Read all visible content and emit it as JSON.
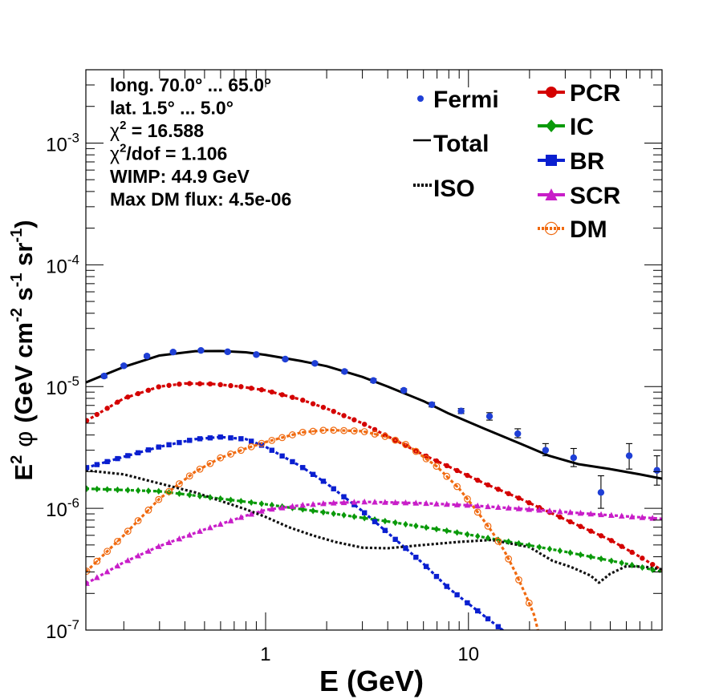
{
  "chart_data": {
    "type": "scatter",
    "title": "",
    "xlabel": "E (GeV)",
    "ylabel": {
      "base": "E",
      "sup1": "2",
      "sym": "φ",
      "unit_open": "(GeV cm",
      "sup2": "-2",
      "mid1": " s",
      "sup3": "-1",
      "mid2": " sr",
      "sup4": "-1",
      "close": ")"
    },
    "xscale": "log",
    "yscale": "log",
    "xlim": [
      0.13,
      90
    ],
    "ylim": [
      1e-07,
      0.004
    ],
    "x_tick_labels": [
      {
        "v": 1,
        "t": "1"
      },
      {
        "v": 10,
        "t": "10"
      }
    ],
    "y_tick_labels": [
      {
        "v": 1e-07,
        "b": "10",
        "e": "-7"
      },
      {
        "v": 1e-06,
        "b": "10",
        "e": "-6"
      },
      {
        "v": 1e-05,
        "b": "10",
        "e": "-5"
      },
      {
        "v": 0.0001,
        "b": "10",
        "e": "-4"
      },
      {
        "v": 0.001,
        "b": "10",
        "e": "-3"
      }
    ],
    "info": [
      {
        "text": "long. 70.0° ... 65.0°"
      },
      {
        "text": "lat. 1.5° ... 5.0°"
      },
      {
        "pre": "χ",
        "sup": "2",
        "post": " = 16.588"
      },
      {
        "pre": "χ",
        "sup": "2",
        "post": "/dof = 1.106"
      },
      {
        "text": "WIMP: 44.9 GeV"
      },
      {
        "text": "Max DM flux: 4.5e-06"
      }
    ],
    "legend_left": [
      {
        "label": "Fermi",
        "key": "fermi"
      },
      {
        "label": "Total",
        "key": "total"
      },
      {
        "label": "ISO",
        "key": "iso"
      }
    ],
    "legend_right": [
      {
        "label": "PCR",
        "key": "pcr"
      },
      {
        "label": "IC",
        "key": "ic"
      },
      {
        "label": "BR",
        "key": "br"
      },
      {
        "label": "SCR",
        "key": "scr"
      },
      {
        "label": "DM",
        "key": "dm"
      }
    ],
    "fermi": {
      "color": "#1f3fd6",
      "points": [
        {
          "x": 0.16,
          "y": 1.22e-05,
          "err": [
            1.18e-05,
            1.26e-05
          ]
        },
        {
          "x": 0.2,
          "y": 1.48e-05,
          "err": [
            1.44e-05,
            1.52e-05
          ]
        },
        {
          "x": 0.26,
          "y": 1.78e-05,
          "err": [
            1.74e-05,
            1.82e-05
          ]
        },
        {
          "x": 0.35,
          "y": 1.92e-05,
          "err": [
            1.88e-05,
            1.96e-05
          ]
        },
        {
          "x": 0.48,
          "y": 1.98e-05,
          "err": [
            1.94e-05,
            2.02e-05
          ]
        },
        {
          "x": 0.65,
          "y": 1.93e-05,
          "err": [
            1.89e-05,
            1.97e-05
          ]
        },
        {
          "x": 0.9,
          "y": 1.83e-05,
          "err": [
            1.79e-05,
            1.87e-05
          ]
        },
        {
          "x": 1.25,
          "y": 1.68e-05,
          "err": [
            1.64e-05,
            1.72e-05
          ]
        },
        {
          "x": 1.75,
          "y": 1.55e-05,
          "err": [
            1.51e-05,
            1.59e-05
          ]
        },
        {
          "x": 2.45,
          "y": 1.33e-05,
          "err": [
            1.29e-05,
            1.37e-05
          ]
        },
        {
          "x": 3.4,
          "y": 1.12e-05,
          "err": [
            1.08e-05,
            1.16e-05
          ]
        },
        {
          "x": 4.8,
          "y": 9.3e-06,
          "err": [
            9e-06,
            9.6e-06
          ]
        },
        {
          "x": 6.6,
          "y": 7.1e-06,
          "err": [
            6.8e-06,
            7.4e-06
          ]
        },
        {
          "x": 9.2,
          "y": 6.3e-06,
          "err": [
            6e-06,
            6.6e-06
          ]
        },
        {
          "x": 12.7,
          "y": 5.7e-06,
          "err": [
            5.3e-06,
            6.1e-06
          ]
        },
        {
          "x": 17.5,
          "y": 4.1e-06,
          "err": [
            3.8e-06,
            4.5e-06
          ]
        },
        {
          "x": 24,
          "y": 3e-06,
          "err": [
            2.7e-06,
            3.4e-06
          ]
        },
        {
          "x": 33,
          "y": 2.6e-06,
          "err": [
            2.2e-06,
            3.1e-06
          ]
        },
        {
          "x": 45,
          "y": 1.35e-06,
          "err": [
            1e-06,
            1.85e-06
          ]
        },
        {
          "x": 62,
          "y": 2.7e-06,
          "err": [
            2.1e-06,
            3.4e-06
          ]
        },
        {
          "x": 85,
          "y": 2.05e-06,
          "err": [
            1.55e-06,
            2.7e-06
          ]
        }
      ]
    },
    "series": [
      {
        "key": "total",
        "name": "Total",
        "color": "#000000",
        "style": "solid",
        "marker": "none",
        "x": [
          0.13,
          0.2,
          0.3,
          0.45,
          0.6,
          0.8,
          1.0,
          1.5,
          2.0,
          3.0,
          4.0,
          6.0,
          8.0,
          12.0,
          18.0,
          25.0,
          35.0,
          50.0,
          70.0,
          90.0
        ],
        "y": [
          1.08e-05,
          1.45e-05,
          1.8e-05,
          1.95e-05,
          1.96e-05,
          1.91e-05,
          1.82e-05,
          1.62e-05,
          1.47e-05,
          1.2e-05,
          1e-05,
          7.6e-06,
          6e-06,
          4.5e-06,
          3.4e-06,
          2.7e-06,
          2.3e-06,
          2.1e-06,
          1.9e-06,
          1.75e-06
        ]
      },
      {
        "key": "pcr",
        "name": "PCR",
        "color": "#d40000",
        "style": "dashed",
        "marker": "circle",
        "x": [
          0.13,
          0.2,
          0.3,
          0.4,
          0.55,
          0.75,
          1.0,
          1.5,
          2.0,
          3.0,
          4.0,
          6.0,
          8.0,
          12.0,
          18.0,
          25.0,
          35.0,
          50.0,
          70.0,
          90.0
        ],
        "y": [
          5.2e-06,
          8e-06,
          1e-05,
          1.06e-05,
          1.05e-05,
          1e-05,
          9.3e-06,
          7.8e-06,
          6.6e-06,
          5e-06,
          3.9e-06,
          2.75e-06,
          2.2e-06,
          1.6e-06,
          1.2e-06,
          9.3e-07,
          7.2e-07,
          5.5e-07,
          4e-07,
          3.1e-07
        ]
      },
      {
        "key": "ic",
        "name": "IC",
        "color": "#0a9a0a",
        "style": "dashed",
        "marker": "diamond",
        "x": [
          0.13,
          0.3,
          0.6,
          1.0,
          2.0,
          4.0,
          8.0,
          15.0,
          30.0,
          60.0,
          90.0
        ],
        "y": [
          1.45e-06,
          1.38e-06,
          1.2e-06,
          1.08e-06,
          9.2e-07,
          7.8e-07,
          6.5e-07,
          5.4e-07,
          4.4e-07,
          3.5e-07,
          3e-07
        ]
      },
      {
        "key": "br",
        "name": "BR",
        "color": "#0a1fd0",
        "style": "dashed",
        "marker": "square",
        "x": [
          0.13,
          0.2,
          0.3,
          0.45,
          0.6,
          0.8,
          1.0,
          1.5,
          2.0,
          3.0,
          4.0,
          6.0,
          8.0,
          12.0,
          16.0
        ],
        "y": [
          2.15e-06,
          2.65e-06,
          3.2e-06,
          3.7e-06,
          3.85e-06,
          3.7e-06,
          3.2e-06,
          2.2e-06,
          1.6e-06,
          9.5e-07,
          6.3e-07,
          3.5e-07,
          2.2e-07,
          1.3e-07,
          9e-08
        ]
      },
      {
        "key": "scr",
        "name": "SCR",
        "color": "#c81ec8",
        "style": "dashed",
        "marker": "triangle",
        "x": [
          0.13,
          0.2,
          0.3,
          0.5,
          0.8,
          1.0,
          1.5,
          2.0,
          3.0,
          4.0,
          6.0,
          10.0,
          20.0,
          40.0,
          90.0
        ],
        "y": [
          2.4e-07,
          3.6e-07,
          4.9e-07,
          6.7e-07,
          8.7e-07,
          9.7e-07,
          1.06e-06,
          1.1e-06,
          1.13e-06,
          1.12e-06,
          1.1e-06,
          1.06e-06,
          9.8e-07,
          9e-07,
          8.2e-07
        ]
      },
      {
        "key": "dm",
        "name": "DM",
        "color": "#f06a10",
        "style": "dashed",
        "marker": "open-circle",
        "x": [
          0.13,
          0.2,
          0.3,
          0.45,
          0.6,
          0.8,
          1.0,
          1.5,
          2.0,
          3.0,
          4.0,
          5.0,
          7.0,
          9.0,
          11.0,
          13.0,
          15.0,
          17.0,
          19.0,
          21.0,
          22.0
        ],
        "y": [
          3e-07,
          6e-07,
          1.2e-06,
          2e-06,
          2.6e-06,
          3.1e-06,
          3.5e-06,
          4.2e-06,
          4.4e-06,
          4.3e-06,
          3.85e-06,
          3.3e-06,
          2.2e-06,
          1.45e-06,
          9.5e-07,
          6.5e-07,
          4.5e-07,
          3e-07,
          2e-07,
          1.35e-07,
          1e-07
        ]
      },
      {
        "key": "iso",
        "name": "ISO",
        "color": "#111111",
        "style": "dotted",
        "marker": "none",
        "x": [
          0.13,
          0.2,
          0.3,
          0.45,
          0.6,
          0.8,
          1.0,
          1.3,
          1.7,
          2.2,
          3.0,
          4.0,
          6.0,
          9.0,
          13.0,
          20.0,
          26.0,
          32.0,
          40.0,
          44.0,
          50.0,
          60.0,
          75.0,
          90.0
        ],
        "y": [
          2.05e-06,
          1.9e-06,
          1.6e-06,
          1.35e-06,
          1.15e-06,
          9.8e-07,
          8.5e-07,
          7e-07,
          6e-07,
          5.3e-07,
          4.75e-07,
          4.7e-07,
          5e-07,
          5.3e-07,
          5.5e-07,
          4.8e-07,
          3.7e-07,
          3.3e-07,
          2.8e-07,
          2.45e-07,
          2.9e-07,
          3.35e-07,
          3.3e-07,
          3.15e-07
        ]
      }
    ]
  }
}
